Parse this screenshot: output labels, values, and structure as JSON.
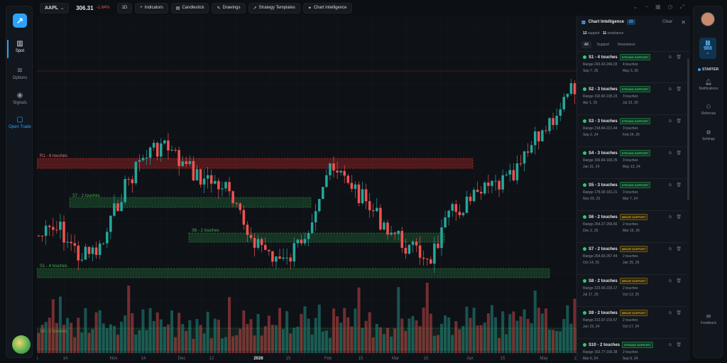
{
  "left_nav": {
    "items": [
      {
        "label": "Spot",
        "icon": "bar-chart-icon"
      },
      {
        "label": "Options",
        "icon": "options-icon"
      },
      {
        "label": "Signals",
        "icon": "signal-icon"
      },
      {
        "label": "Open Trade",
        "icon": "chat-icon"
      }
    ],
    "bottom_badge": "N"
  },
  "toolbar": {
    "symbol": "AAPL",
    "price": "306.31",
    "change": "-1.84%",
    "timeframe": "1D",
    "indicators": "Indicators",
    "chart_type": "Candlestick",
    "drawings": "Drawings",
    "strategy_templates": "Strategy Templates",
    "chart_intelligence": "Chart Intelligence"
  },
  "chart": {
    "x_ticks": [
      "1",
      "14",
      "Nov",
      "14",
      "Dec",
      "12",
      "2026",
      "15",
      "Feb",
      "15",
      "Mar",
      "15",
      "Apr",
      "15",
      "May",
      "1"
    ],
    "zone_labels": [
      "R1 - 6 touches",
      "S7 - 2 touches",
      "S6 - 2 touches",
      "S1 - 4 touches",
      "S8 - 2 touches"
    ]
  },
  "panel": {
    "title": "Chart Intelligence",
    "badge": "23",
    "clear": "Clear",
    "support_count": "12",
    "support_label": "support",
    "resistance_count": "11",
    "resistance_label": "resistance",
    "tabs": [
      "All",
      "Support",
      "Resistance"
    ],
    "levels": [
      {
        "name": "S1 - 4 touches",
        "tag": "STRONG SUPPORT",
        "range": "Range 243.43-246.03",
        "touches": "4 touches",
        "first": "Sep 7, 25",
        "last": "May 3, 26"
      },
      {
        "name": "S2 - 3 touches",
        "tag": "STRONG SUPPORT",
        "range": "Range 192.82-195.23",
        "touches": "3 touches",
        "first": "Apr 1, 25",
        "last": "Jul 23, 25"
      },
      {
        "name": "S3 - 3 touches",
        "tag": "STRONG SUPPORT",
        "range": "Range 218.84-221.44",
        "touches": "3 touches",
        "first": "Sep 2, 24",
        "last": "Feb 24, 25"
      },
      {
        "name": "S4 - 3 touches",
        "tag": "STRONG SUPPORT",
        "range": "Range 166.84-169.25",
        "touches": "3 touches",
        "first": "Jan 31, 24",
        "last": "May 13, 24"
      },
      {
        "name": "S5 - 3 touches",
        "tag": "STRONG SUPPORT",
        "range": "Range 178.00-181.21",
        "touches": "3 touches",
        "first": "Nov 29, 23",
        "last": "Mar 7, 24"
      },
      {
        "name": "S6 - 2 touches",
        "tag": "MINOR SUPPORT",
        "range": "Range 254.27-256.66",
        "touches": "2 touches",
        "first": "Dec 2, 25",
        "last": "Mar 16, 26"
      },
      {
        "name": "S7 - 2 touches",
        "tag": "MINOR SUPPORT",
        "range": "Range 264.83-267.44",
        "touches": "2 touches",
        "first": "Oct 14, 25",
        "last": "Jan 25, 26"
      },
      {
        "name": "S8 - 2 touches",
        "tag": "MINOR SUPPORT",
        "range": "Range 223.56-226.17",
        "touches": "2 touches",
        "first": "Jul 17, 25",
        "last": "Oct 13, 25"
      },
      {
        "name": "S9 - 2 touches",
        "tag": "MINOR SUPPORT",
        "range": "Range 212.97-215.57",
        "touches": "2 touches",
        "first": "Jun 19, 24",
        "last": "Oct 17, 24"
      },
      {
        "name": "S10 - 2 touches",
        "tag": "STRONG SUPPORT",
        "range": "Range 163.77-166.38",
        "touches": "2 touches",
        "first": "Mar 6, 24",
        "last": "Sep 8, 24"
      }
    ]
  },
  "right_nav": {
    "credits": "988",
    "credits_sub": "cr",
    "plan": "STARTER",
    "items": [
      {
        "label": "Notifications",
        "icon": "bell-icon"
      },
      {
        "label": "Referrals",
        "icon": "users-icon"
      },
      {
        "label": "Settings",
        "icon": "gear-icon"
      },
      {
        "label": "Feedback",
        "icon": "feedback-icon"
      }
    ]
  },
  "colors": {
    "up": "#26a69a",
    "down": "#ef5350",
    "accent": "#2aa3ff",
    "support": "#2ecc71",
    "resistance": "#e53935"
  }
}
